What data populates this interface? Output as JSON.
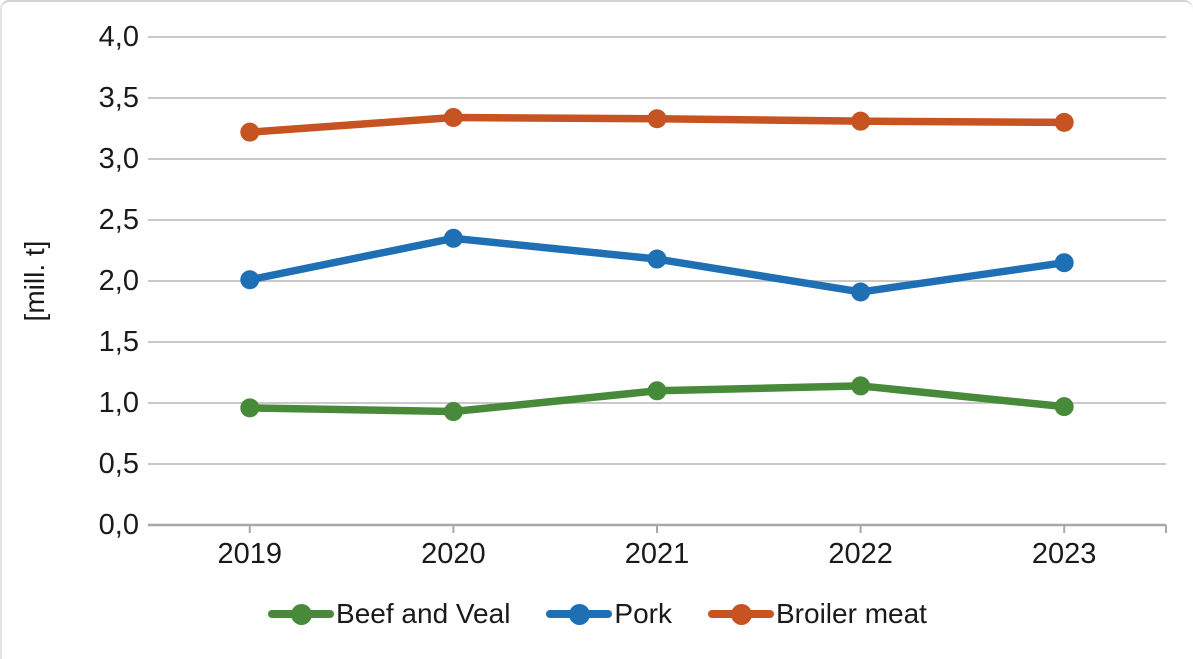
{
  "chart_data": {
    "type": "line",
    "title": "",
    "ylabel": "[mill. t]",
    "xlabel": "",
    "decimal_separator": ",",
    "categories": [
      "2019",
      "2020",
      "2021",
      "2022",
      "2023"
    ],
    "series": [
      {
        "name": "Beef and Veal",
        "color": "#478a39",
        "values": [
          0.96,
          0.93,
          1.1,
          1.14,
          0.97
        ]
      },
      {
        "name": "Pork",
        "color": "#1f6fb4",
        "values": [
          2.01,
          2.35,
          2.18,
          1.91,
          2.15
        ]
      },
      {
        "name": "Broiler meat",
        "color": "#c65321",
        "values": [
          3.22,
          3.34,
          3.33,
          3.31,
          3.3
        ]
      }
    ],
    "y_axis": {
      "min": 0,
      "max": 4,
      "step": 0.5,
      "tick_labels": [
        "0,0",
        "0,5",
        "1,0",
        "1,5",
        "2,0",
        "2,5",
        "3,0",
        "3,5",
        "4,0"
      ]
    },
    "grid": true,
    "legend_position": "bottom"
  },
  "colors": {
    "background": "#ffffff",
    "gridline": "#c9c9c9",
    "axis": "#a8a8a8",
    "text": "#1a1a1a",
    "card_border": "#d4d4d4"
  }
}
